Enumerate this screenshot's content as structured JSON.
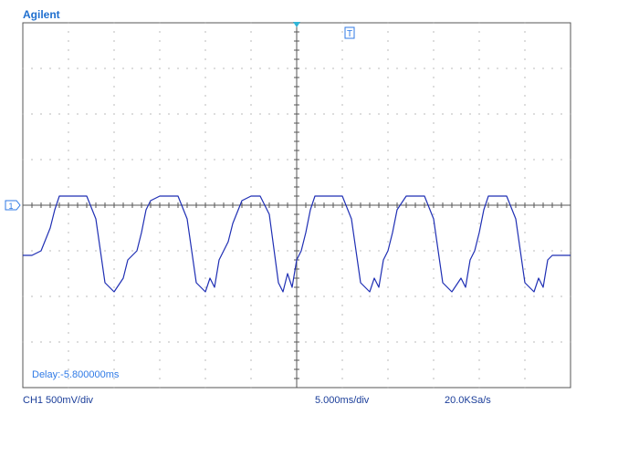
{
  "brand": "Agilent",
  "delay": "Delay:-5.800000ms",
  "ch1_scale": "CH1 500mV/div",
  "time_scale": "5.000ms/div",
  "sample_rate": "20.0KSa/s",
  "trigger_marker": "T",
  "channel_marker": "1",
  "colors": {
    "trace": "#1f2fb4",
    "grid": "#777777",
    "brand": "#1f6fcf",
    "marker": "#2f7ae6",
    "status": "#1a3d99"
  },
  "chart_data": {
    "type": "line",
    "title": "",
    "xlabel": "",
    "ylabel": "",
    "x_divisions": 12,
    "y_divisions": 8,
    "xlim": [
      -30.0,
      30.0
    ],
    "ylim": [
      -2.0,
      2.0
    ],
    "grid": true,
    "series": [
      {
        "x": [
          -30.0,
          -29.0,
          -28.0,
          -27.0,
          -26.5,
          -26.0,
          -25.0,
          -24.0,
          -23.0,
          -22.0,
          -21.0,
          -20.0,
          -19.0,
          -18.5,
          -18.0,
          -17.5,
          -17.0,
          -16.5,
          -16.0,
          -15.0,
          -14.0,
          -13.0,
          -12.0,
          -11.0,
          -10.0,
          -9.5,
          -9.0,
          -8.5,
          -8.0,
          -7.5,
          -7.0,
          -6.0,
          -5.0,
          -4.0,
          -3.0,
          -2.0,
          -1.5,
          -1.0,
          -0.5,
          0.0,
          0.5,
          1.0,
          1.5,
          2.0,
          3.0,
          4.0,
          5.0,
          6.0,
          7.0,
          8.0,
          8.5,
          9.0,
          9.5,
          10.0,
          10.5,
          11.0,
          12.0,
          13.0,
          14.0,
          15.0,
          16.0,
          17.0,
          18.0,
          18.5,
          19.0,
          19.5,
          20.0,
          20.5,
          21.0,
          22.0,
          23.0,
          24.0,
          25.0,
          26.0,
          26.5,
          27.0,
          27.5,
          28.0,
          28.5,
          29.0,
          30.0
        ],
        "values": [
          -0.55,
          -0.55,
          -0.5,
          -0.25,
          -0.05,
          0.1,
          0.1,
          0.1,
          0.1,
          -0.15,
          -0.85,
          -0.95,
          -0.8,
          -0.6,
          -0.55,
          -0.5,
          -0.3,
          -0.05,
          0.05,
          0.1,
          0.1,
          0.1,
          -0.15,
          -0.85,
          -0.95,
          -0.8,
          -0.9,
          -0.6,
          -0.5,
          -0.4,
          -0.2,
          0.05,
          0.1,
          0.1,
          -0.1,
          -0.85,
          -0.95,
          -0.75,
          -0.9,
          -0.6,
          -0.5,
          -0.3,
          -0.05,
          0.1,
          0.1,
          0.1,
          0.1,
          -0.15,
          -0.85,
          -0.95,
          -0.8,
          -0.9,
          -0.6,
          -0.5,
          -0.3,
          -0.05,
          0.1,
          0.1,
          0.1,
          -0.15,
          -0.85,
          -0.95,
          -0.8,
          -0.9,
          -0.6,
          -0.5,
          -0.3,
          -0.05,
          0.1,
          0.1,
          0.1,
          -0.15,
          -0.85,
          -0.95,
          -0.8,
          -0.9,
          -0.6,
          -0.55,
          -0.55,
          -0.55,
          -0.55
        ]
      }
    ]
  }
}
